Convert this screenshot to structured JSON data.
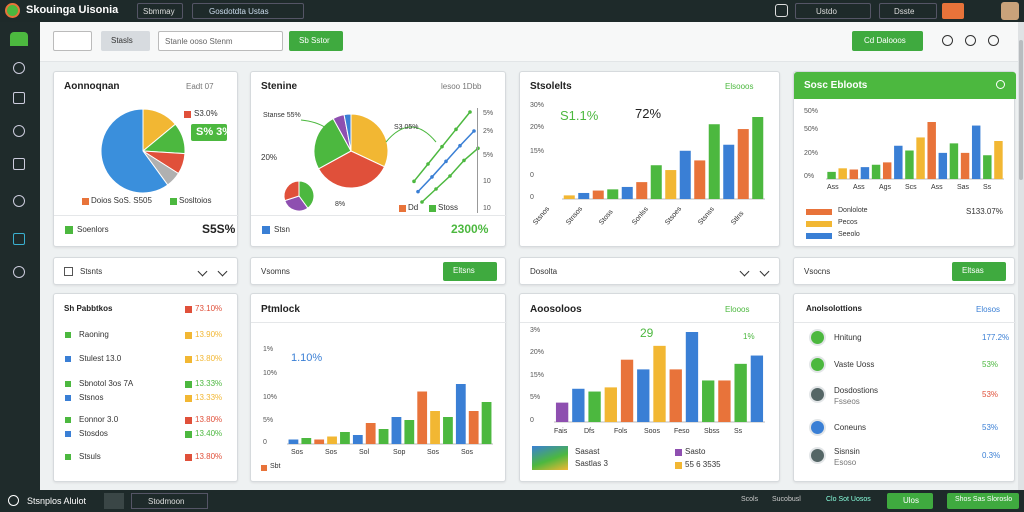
{
  "topbar": {
    "title": "Skouinga Uisonia",
    "menu": "Sbmmay",
    "search": "Gosdotdta Ustas",
    "account": "Ustdo",
    "user": "Dsste"
  },
  "toolbar": {
    "filter": "Stasls",
    "search": "Stanle ooso Stenm",
    "action": "Sb Sstor",
    "export": "Cd Dalooos"
  },
  "summary": {
    "title": "Aonnoqnan",
    "meta": "Eadt 07",
    "slices": [
      14,
      12,
      8,
      6,
      60
    ],
    "callout": "S3.0%",
    "badge": "S% 3%",
    "legend": [
      "Doios SoS. S505",
      "Sosltoios"
    ],
    "footer_label": "Soenlors",
    "footer_value": "S5S%"
  },
  "segments": {
    "title": "Stenine",
    "meta": "lesoo 1Dbb",
    "slices": [
      32,
      35,
      25,
      5,
      3
    ],
    "mini_slices": [
      40,
      30,
      30
    ],
    "label": "Stanse 55%",
    "label2": "20%",
    "label3": "8%",
    "legend": [
      "Dd",
      "Stoss"
    ],
    "annotation": "S3 05%",
    "axis_labels": [
      "5%",
      "2%",
      "5%",
      "10",
      "10"
    ],
    "lines": [
      [
        10,
        30,
        50,
        70,
        90
      ],
      [
        5,
        22,
        40,
        58,
        75
      ],
      [
        0,
        15,
        30,
        48,
        62
      ]
    ],
    "footer_label": "Stsn",
    "footer_value": "2300%"
  },
  "results": {
    "title": "Stsolelts",
    "meta": "Elsooos",
    "big_value": "S1.1%",
    "second_value": "72%",
    "axis_labels": [
      "30%",
      "20%",
      "15%",
      "0",
      "0"
    ],
    "bars": [
      3,
      5,
      7,
      8,
      10,
      14,
      28,
      24,
      40,
      32,
      62,
      45,
      58,
      68
    ],
    "x_labels": [
      "Stsnos",
      "Stnsos",
      "Stoss",
      "Sonlss",
      "Stsoes",
      "Stsnss",
      "Stlns"
    ]
  },
  "highlights": {
    "title": "Sosc Ebloots",
    "axis_labels": [
      "50%",
      "50%",
      "20%",
      "0%"
    ],
    "bars": [
      6,
      9,
      8,
      10,
      12,
      14,
      28,
      24,
      35,
      48,
      22,
      30,
      22,
      45,
      20,
      32
    ],
    "x_labels": [
      "Ass",
      "Ass",
      "Ags",
      "Scs",
      "Ass",
      "Sas",
      "Ss"
    ],
    "legend": [
      "Donlolote",
      "Pecos",
      "Seeolo"
    ],
    "value": "S133.07%"
  },
  "sections": [
    {
      "title": "Stsnts"
    },
    {
      "title": "Vsomns",
      "button": "Eltsns"
    },
    {
      "title": "Dosolta"
    },
    {
      "title": "Vsocns",
      "button": "Eltsas"
    }
  ],
  "rankings": {
    "title": "Sh Pabbtkos",
    "title_value": "73.10%",
    "rows": [
      {
        "label": "Raoning",
        "value": "13.90%"
      },
      {
        "label": "Stulest 13.0",
        "value": "13.80%"
      },
      {
        "label": "Sbnotol 3os 7A",
        "value": "13.33%"
      },
      {
        "label": "Stsnos",
        "value": "13.33%"
      },
      {
        "label": "Eonnor 3.0",
        "value": "13.80%"
      },
      {
        "label": "Stosdos",
        "value": "13.40%"
      },
      {
        "label": "Stsuls",
        "value": "13.80%"
      }
    ]
  },
  "progress": {
    "title": "Ptmlock",
    "value": "1.10%",
    "axis_labels": [
      "1%",
      "10%",
      "10%",
      "5%",
      "0"
    ],
    "bars": [
      3,
      4,
      3,
      5,
      8,
      6,
      14,
      10,
      18,
      16,
      35,
      22,
      18,
      40,
      22,
      28
    ],
    "x_labels": [
      "Sos",
      "Sos",
      "Sol",
      "Sop",
      "Sos",
      "Sos"
    ],
    "legend": "Sbt"
  },
  "accounts": {
    "title": "Aoosoloos",
    "meta": "Elooos",
    "peak": "29",
    "peak2": "1%",
    "axis_labels": [
      "3%",
      "20%",
      "15%",
      "5%",
      "0"
    ],
    "bars": [
      14,
      24,
      22,
      25,
      45,
      38,
      55,
      38,
      65,
      30,
      30,
      42,
      48
    ],
    "x_labels": [
      "Fais",
      "Dfs",
      "Fols",
      "Soos",
      "Feso",
      "Sbss",
      "Ss"
    ],
    "caption": [
      "Sasast",
      "Sastlas 3"
    ],
    "legend": [
      "Sasto",
      "55 6 3535"
    ]
  },
  "annotations": {
    "title": "Anolsolottions",
    "meta": "Elosos",
    "items": [
      {
        "label": "Hnitung",
        "value": "177.2%"
      },
      {
        "label": "Vaste Uoss",
        "value": "53%"
      },
      {
        "label": "Dosdostions",
        "sub": "Fsseos",
        "value": "53%"
      },
      {
        "label": "Coneuns",
        "value": "53%"
      },
      {
        "label": "Sisnsin",
        "sub": "Esoso",
        "value": "0.3%"
      }
    ]
  },
  "footer": {
    "left": "Stsnplos Alulot",
    "select": "Stodmoon",
    "links": [
      "Scols",
      "Sucobusl",
      "Clo Sot Uosos"
    ],
    "button": "Ulos",
    "button2": "Shos Sas Sloroslo"
  }
}
